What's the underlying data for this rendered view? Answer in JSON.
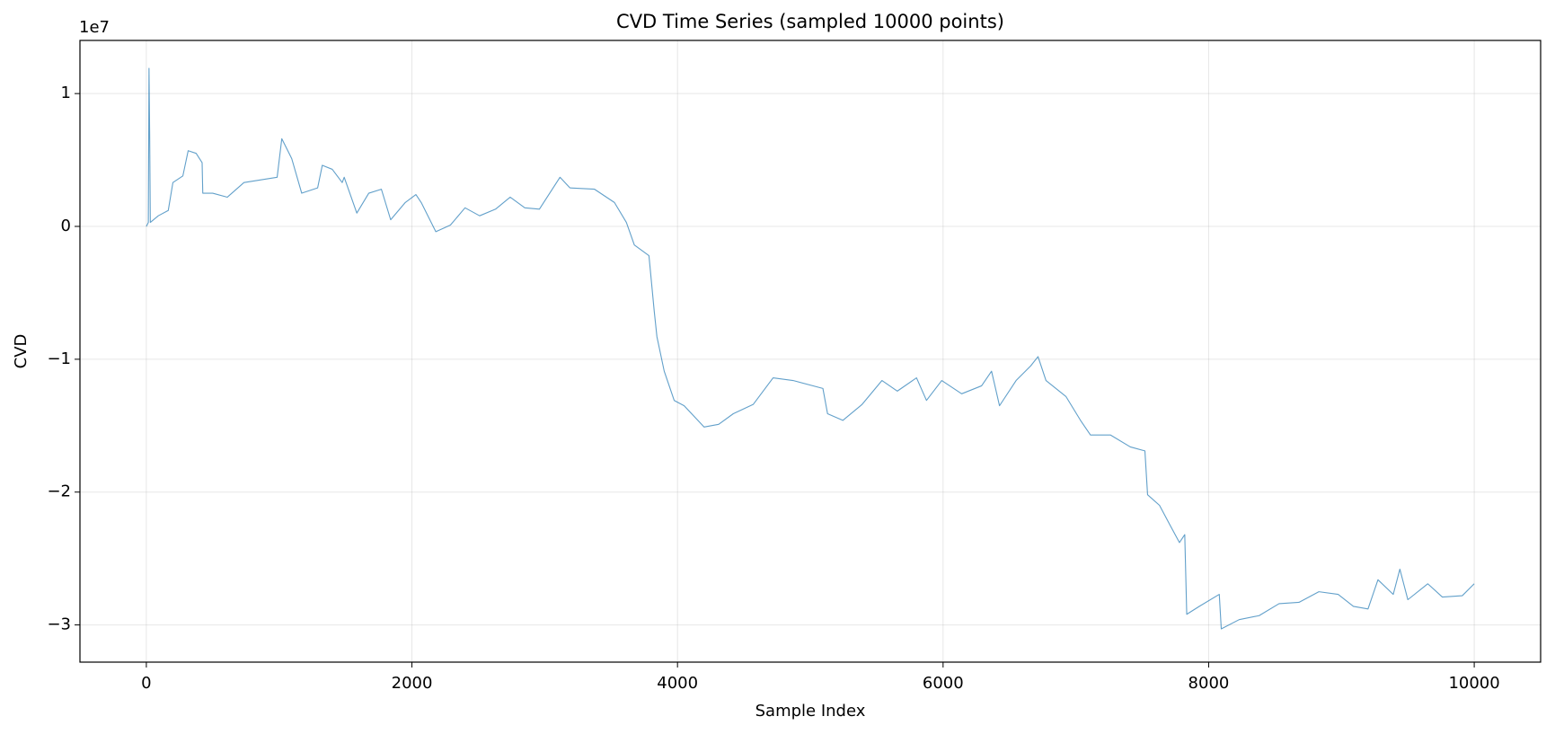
{
  "chart_data": {
    "type": "line",
    "title": "CVD Time Series (sampled 10000 points)",
    "xlabel": "Sample Index",
    "ylabel": "CVD",
    "y_offset_label": "1e7",
    "x": [
      0,
      15,
      20,
      25,
      30,
      90,
      165,
      200,
      275,
      315,
      375,
      420,
      425,
      500,
      610,
      735,
      985,
      1020,
      1075,
      1095,
      1170,
      1290,
      1325,
      1400,
      1475,
      1490,
      1585,
      1675,
      1770,
      1840,
      1950,
      2030,
      2070,
      2180,
      2290,
      2400,
      2510,
      2630,
      2740,
      2850,
      2960,
      3115,
      3190,
      3375,
      3525,
      3615,
      3675,
      3785,
      3825,
      3845,
      3900,
      3975,
      4050,
      4200,
      4310,
      4420,
      4570,
      4720,
      4870,
      5095,
      5130,
      5245,
      5390,
      5540,
      5655,
      5800,
      5875,
      5990,
      6140,
      6290,
      6365,
      6425,
      6550,
      6660,
      6715,
      6775,
      6925,
      7035,
      7110,
      7260,
      7410,
      7520,
      7540,
      7630,
      7710,
      7780,
      7820,
      7835,
      7930,
      8080,
      8095,
      8230,
      8380,
      8530,
      8680,
      8830,
      8975,
      9090,
      9200,
      9275,
      9390,
      9440,
      9500,
      9650,
      9760,
      9910,
      10000
    ],
    "series": [
      {
        "color": "#1f77b4",
        "values": [
          0,
          0.03,
          1.19,
          0.7,
          0.03,
          0.08,
          0.12,
          0.33,
          0.38,
          0.57,
          0.55,
          0.48,
          0.25,
          0.25,
          0.22,
          0.33,
          0.37,
          0.66,
          0.55,
          0.51,
          0.25,
          0.29,
          0.46,
          0.43,
          0.33,
          0.37,
          0.1,
          0.25,
          0.28,
          0.05,
          0.18,
          0.24,
          0.18,
          -0.04,
          0.01,
          0.14,
          0.08,
          0.13,
          0.22,
          0.14,
          0.13,
          0.37,
          0.29,
          0.28,
          0.18,
          0.03,
          -0.14,
          -0.22,
          -0.64,
          -0.83,
          -1.09,
          -1.31,
          -1.35,
          -1.51,
          -1.49,
          -1.41,
          -1.34,
          -1.14,
          -1.16,
          -1.22,
          -1.41,
          -1.46,
          -1.34,
          -1.16,
          -1.24,
          -1.14,
          -1.31,
          -1.16,
          -1.26,
          -1.2,
          -1.09,
          -1.35,
          -1.16,
          -1.05,
          -0.98,
          -1.16,
          -1.28,
          -1.46,
          -1.57,
          -1.57,
          -1.66,
          -1.69,
          -2.02,
          -2.1,
          -2.25,
          -2.38,
          -2.32,
          -2.92,
          -2.86,
          -2.77,
          -3.03,
          -2.96,
          -2.93,
          -2.84,
          -2.83,
          -2.75,
          -2.77,
          -2.86,
          -2.88,
          -2.66,
          -2.77,
          -2.58,
          -2.81,
          -2.69,
          -2.79,
          -2.78,
          -2.69
        ]
      }
    ],
    "xlim": [
      -500,
      10500
    ],
    "ylim": [
      -3.28,
      1.4
    ],
    "xticks": [
      0,
      2000,
      4000,
      6000,
      8000,
      10000
    ],
    "yticks": [
      1,
      0,
      {
        "value": -1,
        "label": "−1"
      },
      {
        "value": -2,
        "label": "−2"
      },
      {
        "value": -3,
        "label": "−3"
      }
    ],
    "grid": true,
    "line_alpha": 0.7
  }
}
